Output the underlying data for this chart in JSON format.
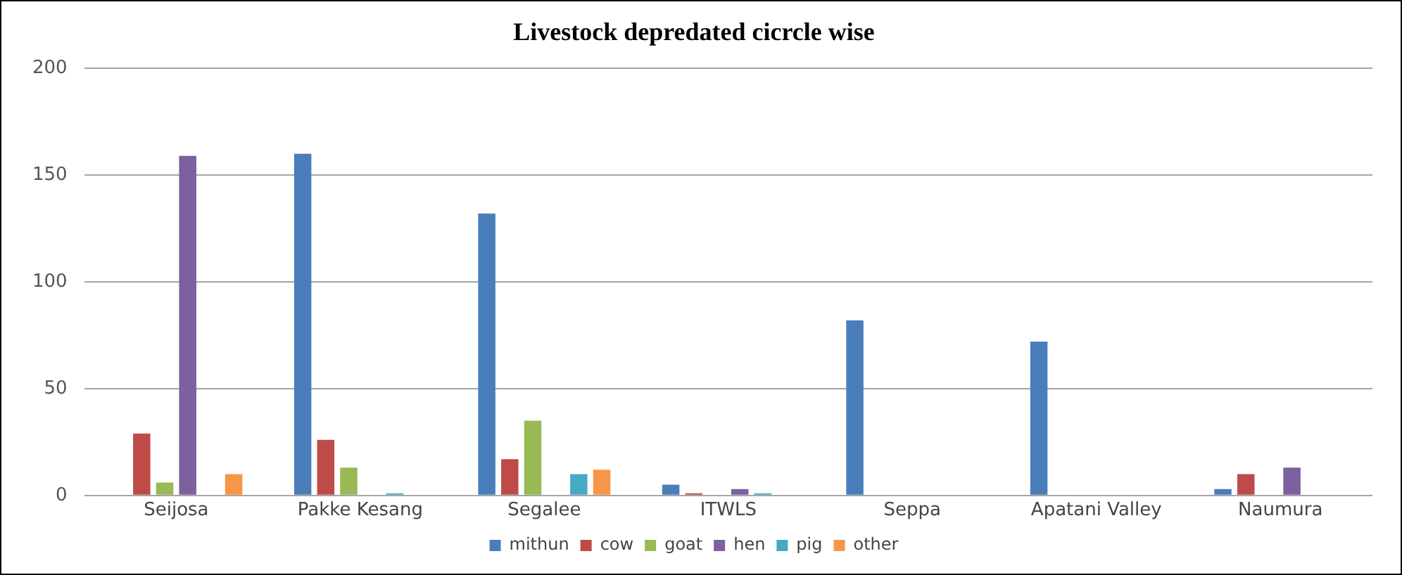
{
  "chart_data": {
    "type": "bar",
    "title": "Livestock depredated cicrcle wise",
    "categories": [
      "Seijosa",
      "Pakke Kesang",
      "Segalee",
      "ITWLS",
      "Seppa",
      "Apatani Valley",
      "Naumura"
    ],
    "series": [
      {
        "name": "mithun",
        "color": "#4a7ebb",
        "values": [
          0,
          160,
          132,
          5,
          82,
          72,
          3
        ]
      },
      {
        "name": "cow",
        "color": "#be4b48",
        "values": [
          29,
          26,
          17,
          1,
          0,
          0,
          10
        ]
      },
      {
        "name": "goat",
        "color": "#98b954",
        "values": [
          6,
          13,
          35,
          0,
          0,
          0,
          0
        ]
      },
      {
        "name": "hen",
        "color": "#7d60a0",
        "values": [
          159,
          0,
          0,
          3,
          0,
          0,
          13
        ]
      },
      {
        "name": "pig",
        "color": "#46aac5",
        "values": [
          0,
          1,
          10,
          1,
          0,
          0,
          0
        ]
      },
      {
        "name": "other",
        "color": "#f79646",
        "values": [
          10,
          0,
          12,
          0,
          0,
          0,
          0
        ]
      }
    ],
    "ylim": [
      0,
      200
    ],
    "yticks": [
      0,
      50,
      100,
      150,
      200
    ],
    "grid": "y",
    "legend": "bottom"
  }
}
